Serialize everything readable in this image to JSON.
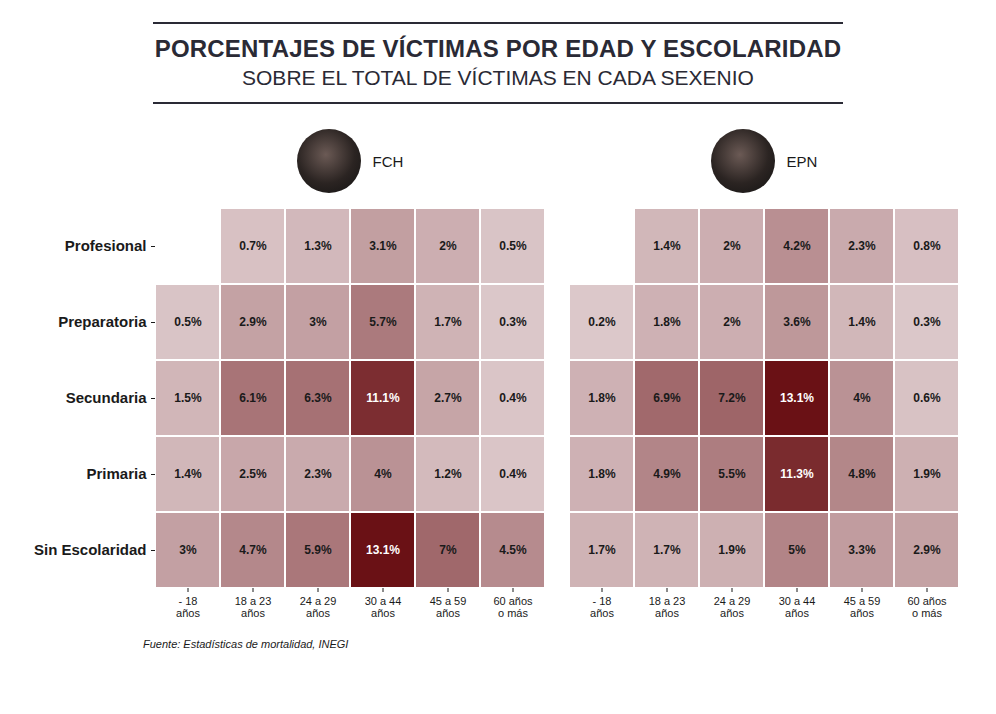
{
  "title": "PORCENTAJES DE VÍCTIMAS POR EDAD Y ESCOLARIDAD",
  "subtitle": "SOBRE EL TOTAL DE VÍCTIMAS EN CADA SEXENIO",
  "caption": "Fuente: Estadísticas de mortalidad, INEGI",
  "chart_data": [
    {
      "type": "heatmap",
      "title": "FCH",
      "color": "#6a1115",
      "data_labels": true,
      "x": [
        "- 18 años",
        "18 a 23 años",
        "24 a 29 años",
        "30 a 44 años",
        "45 a 59 años",
        "60 años o más"
      ],
      "y": [
        "Profesional",
        "Preparatoria",
        "Secundaria",
        "Primaria",
        "Sin Escolaridad"
      ],
      "values": [
        [
          null,
          0.7,
          1.3,
          3.1,
          2,
          0.5
        ],
        [
          0.5,
          2.9,
          3,
          5.7,
          1.7,
          0.3
        ],
        [
          1.5,
          6.1,
          6.3,
          11.1,
          2.7,
          0.4
        ],
        [
          1.4,
          2.5,
          2.3,
          4,
          1.2,
          0.4
        ],
        [
          3,
          4.7,
          5.9,
          13.1,
          7,
          4.5
        ]
      ],
      "value_labels": [
        [
          null,
          "0.7%",
          "1.3%",
          "3.1%",
          "2%",
          "0.5%"
        ],
        [
          "0.5%",
          "2.9%",
          "3%",
          "5.7%",
          "1.7%",
          "0.3%"
        ],
        [
          "1.5%",
          "6.1%",
          "6.3%",
          "11.1%",
          "2.7%",
          "0.4%"
        ],
        [
          "1.4%",
          "2.5%",
          "2.3%",
          "4%",
          "1.2%",
          "0.4%"
        ],
        [
          "3%",
          "4.7%",
          "5.9%",
          "13.1%",
          "7%",
          "4.5%"
        ]
      ]
    },
    {
      "type": "heatmap",
      "title": "EPN",
      "color": "#6a1115",
      "data_labels": true,
      "tick_labels": "x",
      "x": [
        "- 18 años",
        "18 a 23 años",
        "24 a 29 años",
        "30 a 44 años",
        "45 a 59 años",
        "60 años o más"
      ],
      "y": [
        "Profesional",
        "Preparatoria",
        "Secundaria",
        "Primaria",
        "Sin Escolaridad"
      ],
      "values": [
        [
          null,
          1.4,
          2,
          4.2,
          2.3,
          0.8
        ],
        [
          0.2,
          1.8,
          2,
          3.6,
          1.4,
          0.3
        ],
        [
          1.8,
          6.9,
          7.2,
          13.1,
          4,
          0.6
        ],
        [
          1.8,
          4.9,
          5.5,
          11.3,
          4.8,
          1.9
        ],
        [
          1.7,
          1.7,
          1.9,
          5,
          3.3,
          2.9
        ]
      ],
      "value_labels": [
        [
          null,
          "1.4%",
          "2%",
          "4.2%",
          "2.3%",
          "0.8%"
        ],
        [
          "0.2%",
          "1.8%",
          "2%",
          "3.6%",
          "1.4%",
          "0.3%"
        ],
        [
          "1.8%",
          "6.9%",
          "7.2%",
          "13.1%",
          "4%",
          "0.6%"
        ],
        [
          "1.8%",
          "4.9%",
          "5.5%",
          "11.3%",
          "4.8%",
          "1.9%"
        ],
        [
          "1.7%",
          "1.7%",
          "1.9%",
          "5%",
          "3.3%",
          "2.9%"
        ]
      ]
    }
  ]
}
